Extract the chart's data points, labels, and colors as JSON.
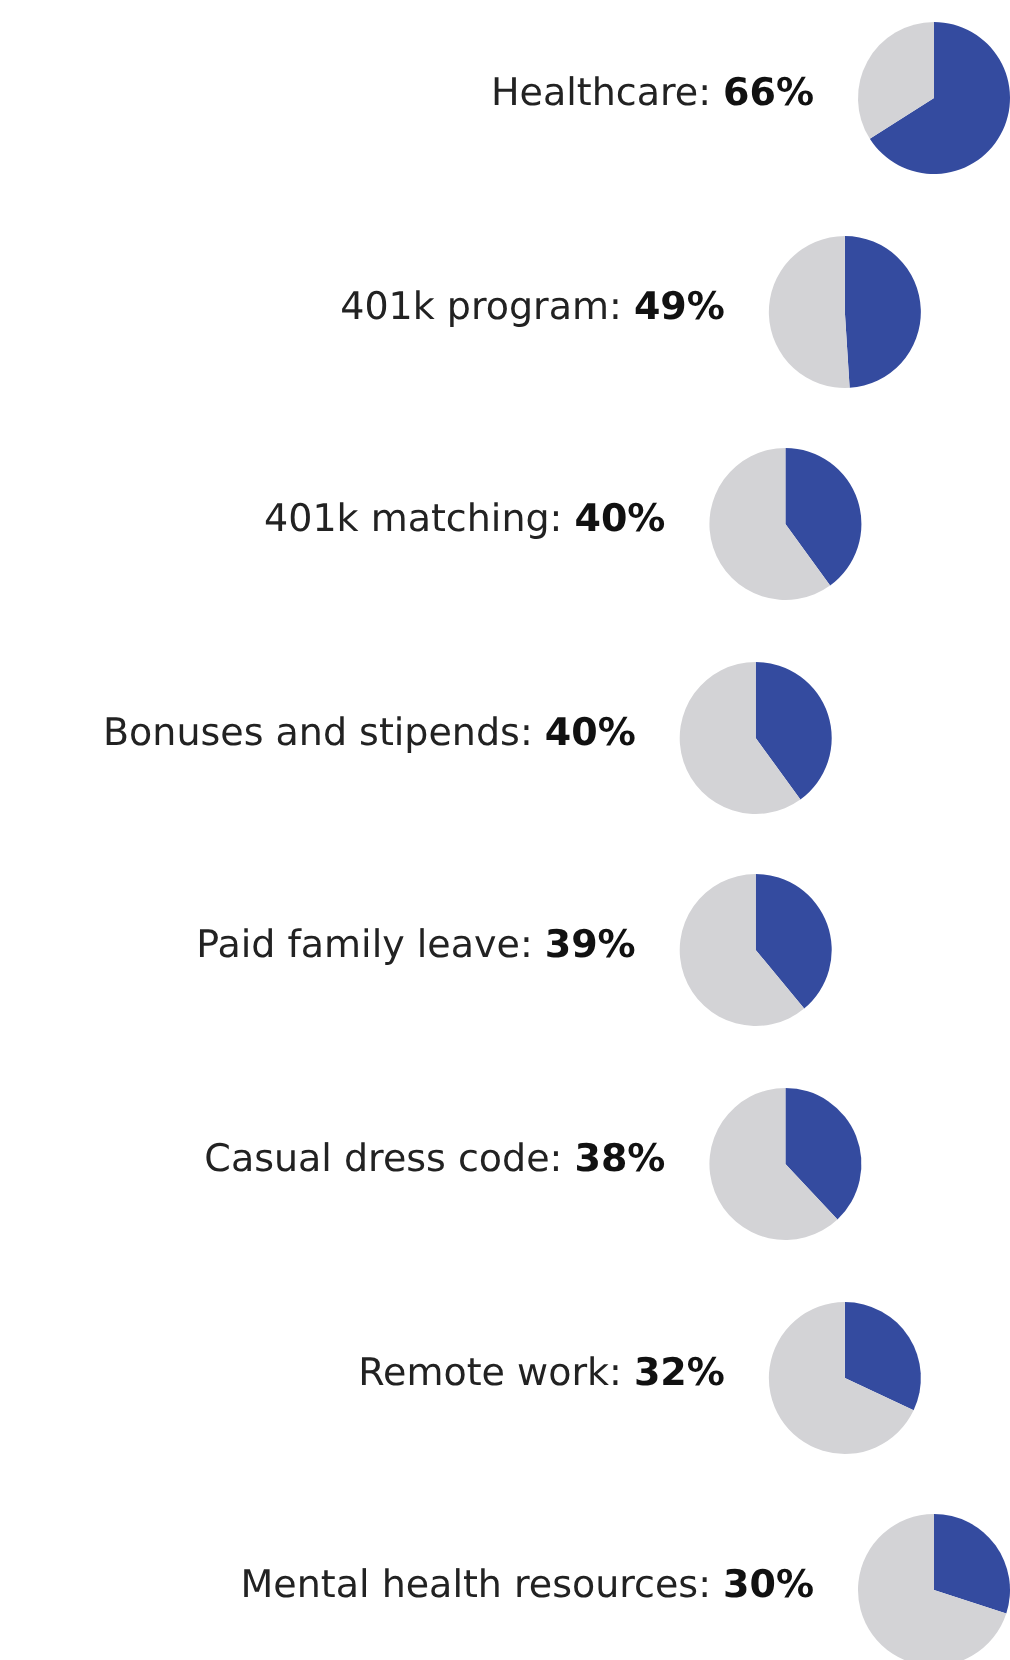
{
  "chart_data": [
    {
      "type": "pie",
      "title": "Healthcare: 66%",
      "categories": [
        null,
        null
      ],
      "values": [
        66,
        34
      ],
      "colors": [
        "#344b9f",
        "#d3d3d6"
      ]
    },
    {
      "type": "pie",
      "title": "401k program: 49%",
      "categories": [
        null,
        null
      ],
      "values": [
        49,
        51
      ],
      "colors": [
        "#344b9f",
        "#d3d3d6"
      ]
    },
    {
      "type": "pie",
      "title": "401k matching: 40%",
      "categories": [
        null,
        null
      ],
      "values": [
        40,
        60
      ],
      "colors": [
        "#344b9f",
        "#d3d3d6"
      ]
    },
    {
      "type": "pie",
      "title": "Bonuses and stipends: 40%",
      "categories": [
        null,
        null
      ],
      "values": [
        40,
        60
      ],
      "colors": [
        "#344b9f",
        "#d3d3d6"
      ]
    },
    {
      "type": "pie",
      "title": "Paid family leave: 39%",
      "categories": [
        null,
        null
      ],
      "values": [
        39,
        61
      ],
      "colors": [
        "#344b9f",
        "#d3d3d6"
      ]
    },
    {
      "type": "pie",
      "title": "Casual dress code: 38%",
      "categories": [
        null,
        null
      ],
      "values": [
        38,
        62
      ],
      "colors": [
        "#344b9f",
        "#d3d3d6"
      ]
    },
    {
      "type": "pie",
      "title": "Remote work: 32%",
      "categories": [
        null,
        null
      ],
      "values": [
        32,
        68
      ],
      "colors": [
        "#344b9f",
        "#d3d3d6"
      ]
    },
    {
      "type": "pie",
      "title": "Mental health resources: 30%",
      "categories": [
        null,
        null
      ],
      "values": [
        30,
        70
      ],
      "colors": [
        "#344b9f",
        "#d3d3d6"
      ]
    }
  ]
}
